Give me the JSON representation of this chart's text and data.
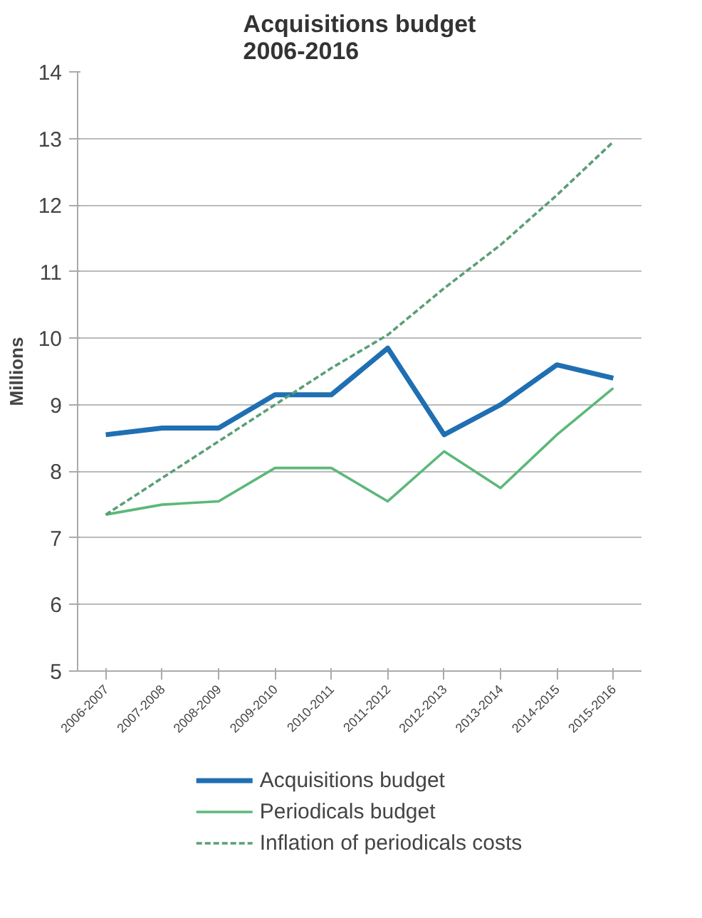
{
  "chart_data": {
    "type": "line",
    "title": "Acquisitions budget\n2006-2016",
    "ylabel": "Millions",
    "categories": [
      "2006-2007",
      "2007-2008",
      "2008-2009",
      "2009-2010",
      "2010-2011",
      "2011-2012",
      "2012-2013",
      "2013-2014",
      "2014-2015",
      "2015-2016"
    ],
    "series": [
      {
        "name": "Acquisitions budget",
        "color": "#1f6fb2",
        "values": [
          8.55,
          8.65,
          8.65,
          9.15,
          9.15,
          9.85,
          8.55,
          9.0,
          9.6,
          9.4
        ]
      },
      {
        "name": "Periodicals budget",
        "color": "#5cb87a",
        "values": [
          7.35,
          7.5,
          7.55,
          8.05,
          8.05,
          7.55,
          8.3,
          7.75,
          8.55,
          9.25
        ]
      },
      {
        "name": "Inflation of periodicals costs",
        "color": "#5a9e77",
        "line_style": "dashed",
        "values": [
          7.35,
          7.9,
          8.45,
          9.0,
          9.55,
          10.05,
          10.75,
          11.4,
          12.15,
          12.95
        ]
      }
    ],
    "ylim": [
      5,
      14
    ],
    "yticks": [
      5,
      6,
      7,
      8,
      9,
      10,
      11,
      12,
      13,
      14
    ],
    "grid": "y",
    "legend": "bottom",
    "marker": "none",
    "line_style": "solid"
  }
}
